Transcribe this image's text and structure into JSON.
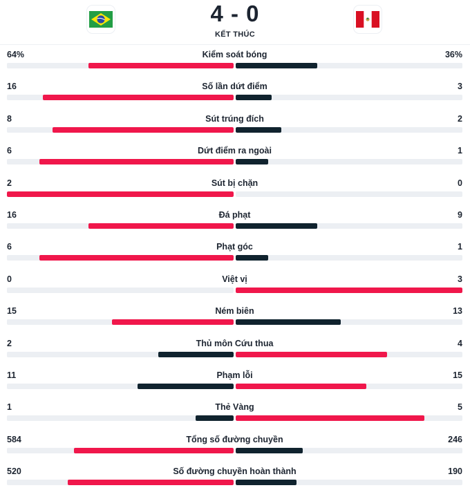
{
  "match": {
    "score": "4 - 0",
    "status": "KẾT THÚC",
    "home_flag": "brazil-flag-icon",
    "away_flag": "peru-flag-icon"
  },
  "colors": {
    "leader": "#f0174b",
    "trailer": "#10232e",
    "track": "#eceff3"
  },
  "stats": [
    {
      "label": "Kiểm soát bóng",
      "home": "64%",
      "away": "36%",
      "home_value": 64,
      "away_value": 36
    },
    {
      "label": "Số lần dứt điểm",
      "home": "16",
      "away": "3",
      "home_value": 16,
      "away_value": 3
    },
    {
      "label": "Sút trúng đích",
      "home": "8",
      "away": "2",
      "home_value": 8,
      "away_value": 2
    },
    {
      "label": "Dứt điểm ra ngoài",
      "home": "6",
      "away": "1",
      "home_value": 6,
      "away_value": 1
    },
    {
      "label": "Sút bị chặn",
      "home": "2",
      "away": "0",
      "home_value": 2,
      "away_value": 0
    },
    {
      "label": "Đá phạt",
      "home": "16",
      "away": "9",
      "home_value": 16,
      "away_value": 9
    },
    {
      "label": "Phạt góc",
      "home": "6",
      "away": "1",
      "home_value": 6,
      "away_value": 1
    },
    {
      "label": "Việt vị",
      "home": "0",
      "away": "3",
      "home_value": 0,
      "away_value": 3
    },
    {
      "label": "Ném biên",
      "home": "15",
      "away": "13",
      "home_value": 15,
      "away_value": 13
    },
    {
      "label": "Thủ môn Cứu thua",
      "home": "2",
      "away": "4",
      "home_value": 2,
      "away_value": 4
    },
    {
      "label": "Phạm lỗi",
      "home": "11",
      "away": "15",
      "home_value": 11,
      "away_value": 15
    },
    {
      "label": "Thẻ Vàng",
      "home": "1",
      "away": "5",
      "home_value": 1,
      "away_value": 5
    },
    {
      "label": "Tổng số đường chuyền",
      "home": "584",
      "away": "246",
      "home_value": 584,
      "away_value": 246
    },
    {
      "label": "Số đường chuyền hoàn thành",
      "home": "520",
      "away": "190",
      "home_value": 520,
      "away_value": 190
    }
  ]
}
